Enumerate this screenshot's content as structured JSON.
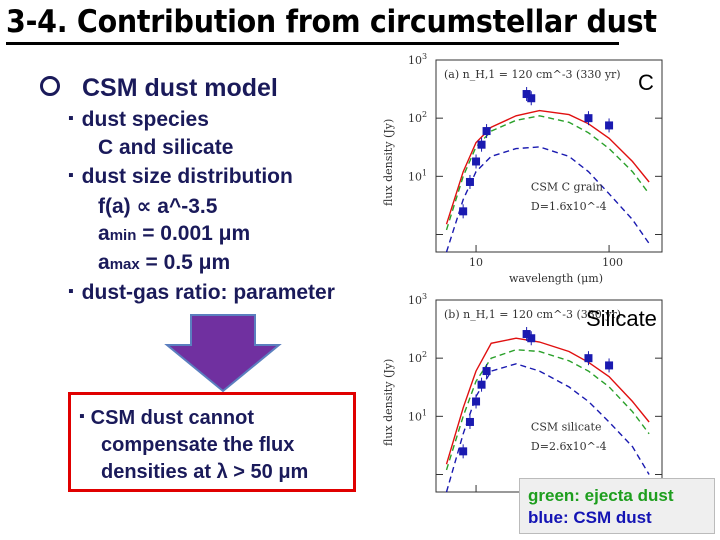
{
  "slide": {
    "title": "3-4. Contribution from circumstellar dust",
    "section_heading": "CSM dust model",
    "bullets": {
      "species_label": "dust species",
      "species_value": "C and silicate",
      "size_label": "dust size distribution",
      "size_law": "f(a) ∝ a^-3.5",
      "amin_prefix": "a",
      "amin_sub": "min",
      "amin_value": " = 0.001 μm",
      "amax_prefix": "a",
      "amax_sub": "max",
      "amax_value": " = 0.5 μm",
      "ratio_label": "dust-gas ratio: parameter"
    },
    "conclusion": {
      "line1": "CSM dust cannot",
      "line2": "compensate the flux",
      "line3": "densities at λ > 50 μm"
    },
    "panel_c_label": "C",
    "panel_si_label": "Silicate",
    "legend": {
      "green": "green: ejecta dust",
      "blue": "blue: CSM dust"
    },
    "colors": {
      "green_text": "#1e9e1e",
      "blue_text": "#1414b4",
      "arrow_fill": "#7030a0",
      "box_border": "#e00000"
    }
  },
  "chart_data": [
    {
      "type": "line",
      "panel_label": "(a) n_H,1 = 120 cm^-3 (330 yr)",
      "annotation": "CSM C grain",
      "D_label": "D=1.6x10^-4",
      "xlabel": "wavelength (μm)",
      "ylabel": "flux density (Jy)",
      "xscale": "log",
      "yscale": "log",
      "x_ticks": [
        "10",
        "100"
      ],
      "y_ticks": [
        "10^1",
        "10^2",
        "10^3"
      ],
      "series": [
        {
          "color": "red",
          "style": "solid",
          "x": [
            6,
            8,
            10,
            13,
            20,
            30,
            50,
            70,
            100,
            150,
            200
          ],
          "y": [
            1.5,
            12,
            38,
            70,
            110,
            135,
            115,
            80,
            45,
            18,
            8
          ]
        },
        {
          "color": "green",
          "style": "dashed",
          "x": [
            6,
            8,
            10,
            13,
            20,
            30,
            50,
            70,
            100,
            150,
            200
          ],
          "y": [
            1.2,
            10,
            32,
            60,
            92,
            110,
            85,
            56,
            30,
            12,
            5
          ]
        },
        {
          "color": "blue",
          "style": "dashed",
          "x": [
            6,
            8,
            10,
            13,
            20,
            30,
            50,
            70,
            100,
            150,
            200
          ],
          "y": [
            0.5,
            4,
            12,
            22,
            30,
            32,
            22,
            12,
            5,
            1.8,
            0.7
          ]
        }
      ],
      "observed_points": {
        "x": [
          8,
          9,
          10,
          11,
          12,
          24,
          26,
          70,
          100
        ],
        "y": [
          2.5,
          8,
          18,
          35,
          60,
          260,
          220,
          100,
          75
        ]
      }
    },
    {
      "type": "line",
      "panel_label": "(b) n_H,1 = 120 cm^-3 (330 yr)",
      "annotation": "CSM silicate",
      "D_label": "D=2.6x10^-4",
      "xlabel": "",
      "ylabel": "flux density (Jy)",
      "xscale": "log",
      "yscale": "log",
      "y_ticks": [
        "10^1",
        "10^2",
        "10^3"
      ],
      "series": [
        {
          "color": "red",
          "style": "solid",
          "x": [
            6,
            8,
            10,
            13,
            20,
            30,
            50,
            70,
            100,
            150,
            200
          ],
          "y": [
            1.5,
            14,
            60,
            180,
            220,
            190,
            130,
            85,
            48,
            18,
            8
          ]
        },
        {
          "color": "green",
          "style": "dashed",
          "x": [
            6,
            8,
            10,
            13,
            20,
            30,
            50,
            70,
            100,
            150,
            200
          ],
          "y": [
            1.2,
            10,
            40,
            100,
            140,
            130,
            90,
            60,
            32,
            12,
            5
          ]
        },
        {
          "color": "blue",
          "style": "dashed",
          "x": [
            6,
            8,
            10,
            13,
            20,
            30,
            50,
            70,
            100,
            150,
            200
          ],
          "y": [
            0.5,
            5,
            22,
            60,
            80,
            60,
            32,
            18,
            8,
            3,
            1
          ]
        }
      ],
      "observed_points": {
        "x": [
          8,
          9,
          10,
          11,
          12,
          24,
          26,
          70,
          100
        ],
        "y": [
          2.5,
          8,
          18,
          35,
          60,
          260,
          220,
          100,
          75
        ]
      }
    }
  ]
}
